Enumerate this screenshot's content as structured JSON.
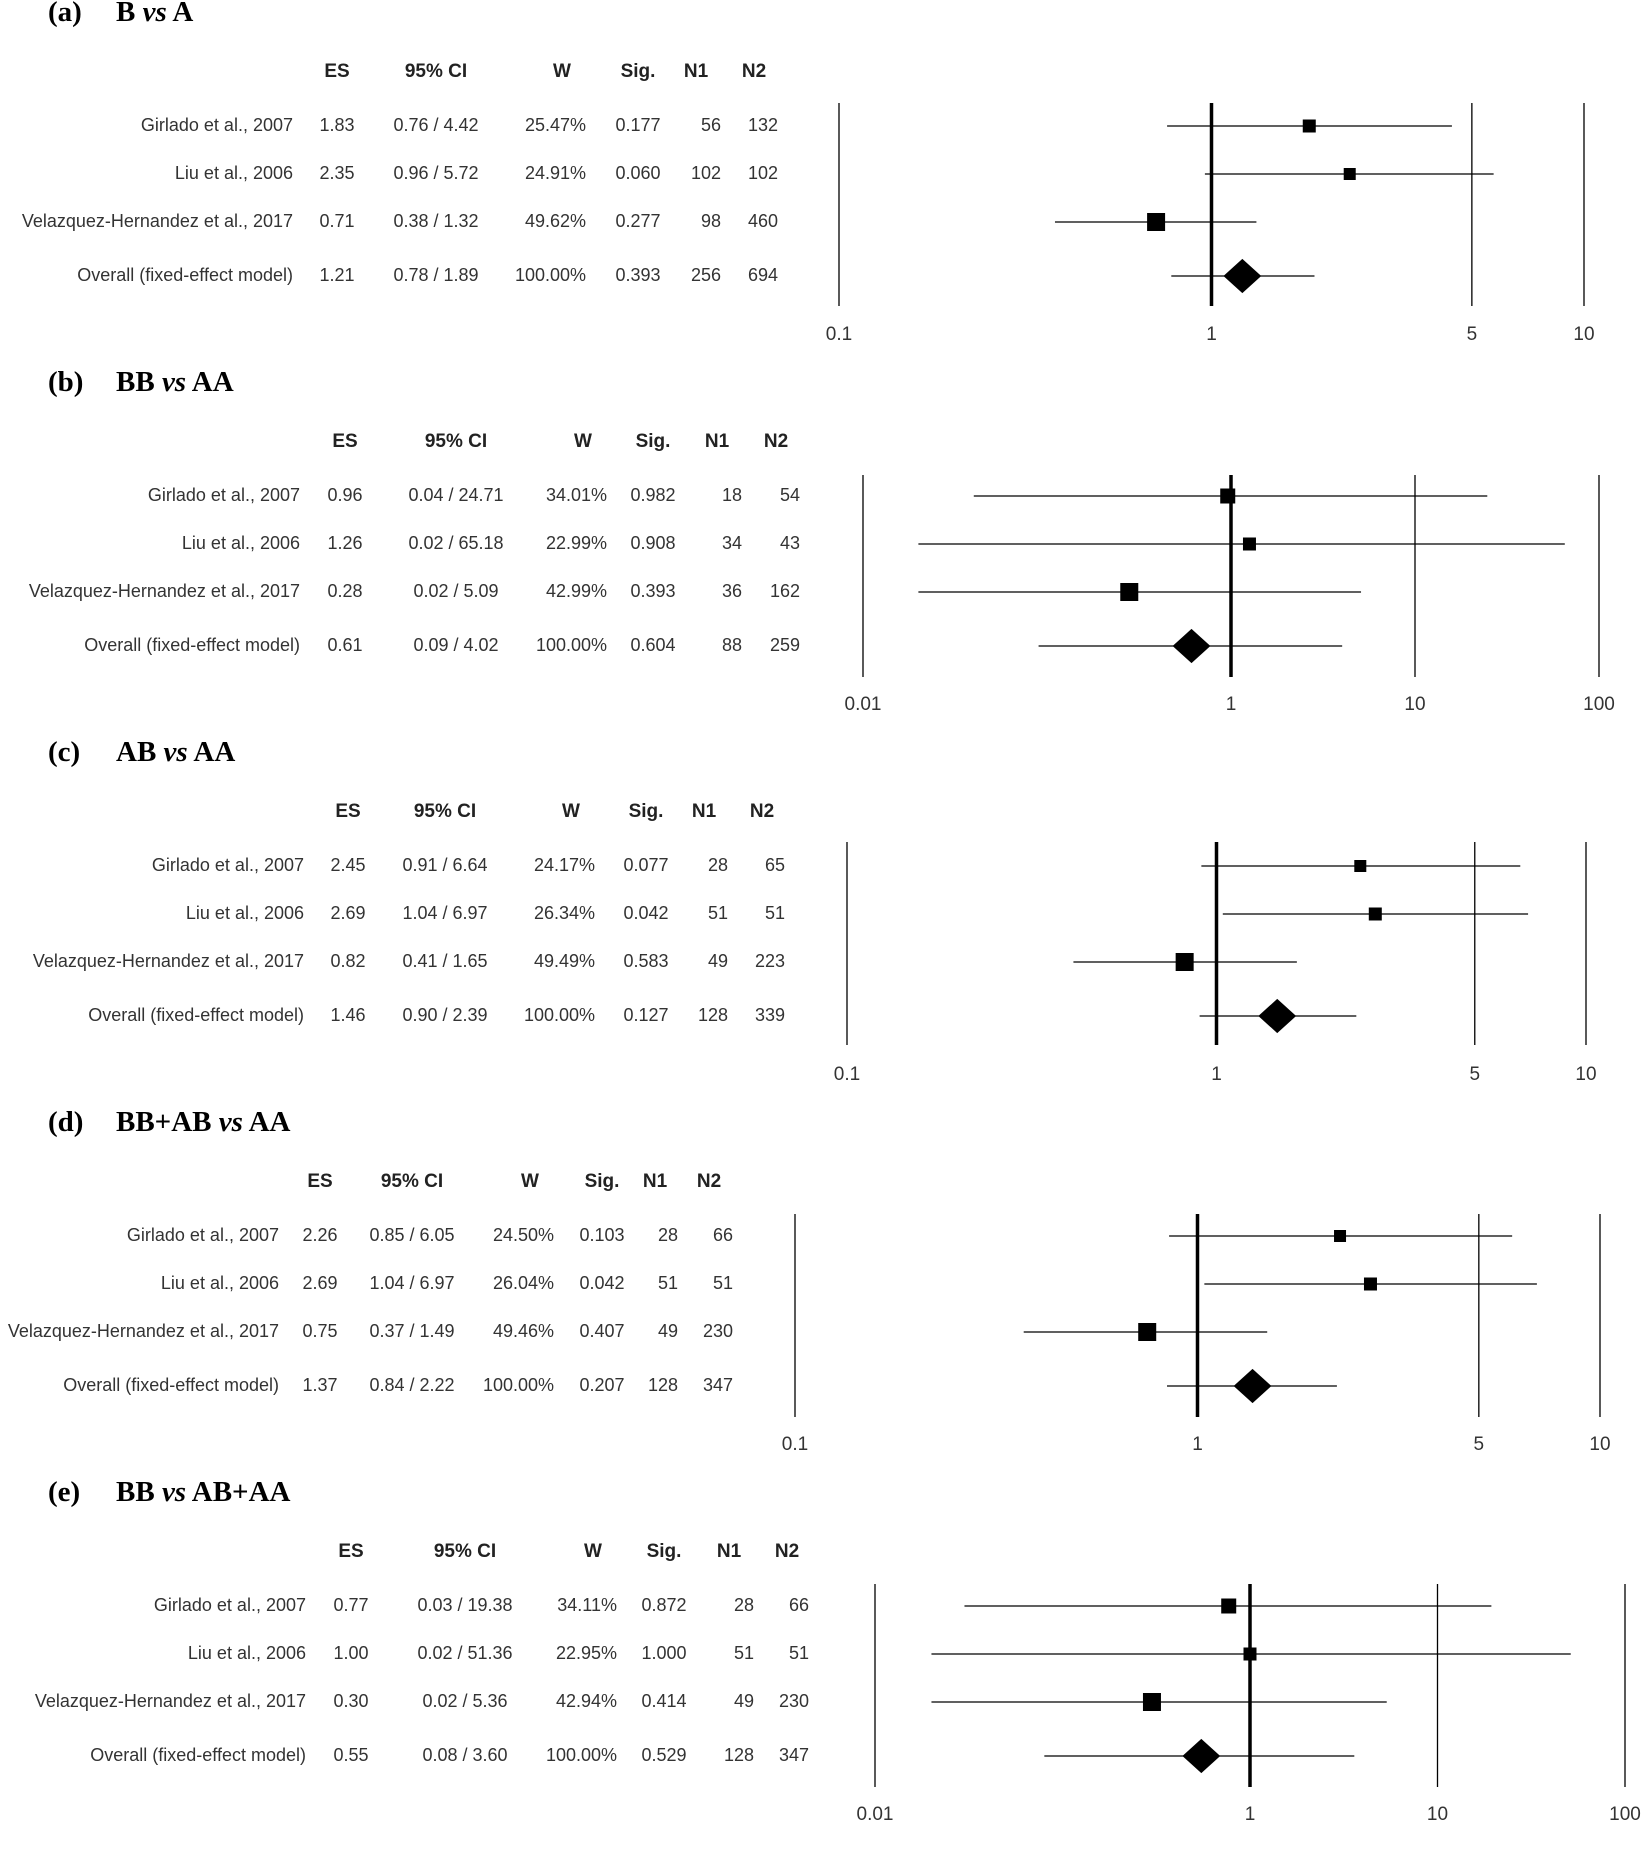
{
  "chart_data": [
    {
      "type": "forest",
      "panel_label": "(a)",
      "title_left": "B",
      "title_vs": "vs",
      "title_right": "A",
      "columns": [
        "ES",
        "95% CI",
        "W",
        "Sig.",
        "N1",
        "N2"
      ],
      "scale": "log",
      "xlim": [
        0.1,
        10
      ],
      "ticks": [
        {
          "value": 0.1,
          "label": "0.1",
          "line": "thin"
        },
        {
          "value": 1,
          "label": "1",
          "line": "thick"
        },
        {
          "value": 5,
          "label": "5",
          "line": "thin"
        },
        {
          "value": 10,
          "label": "10",
          "line": "thin"
        }
      ],
      "rows": [
        {
          "study": "Girlado et al., 2007",
          "es": "1.83",
          "ci": "0.76 / 4.42",
          "w": "25.47%",
          "sig": "0.177",
          "n1": "56",
          "n2": "132",
          "es_value": 1.83,
          "lower": 0.76,
          "upper": 4.42,
          "marker": "square",
          "marker_size": 13
        },
        {
          "study": "Liu et al., 2006",
          "es": "2.35",
          "ci": "0.96 / 5.72",
          "w": "24.91%",
          "sig": "0.060",
          "n1": "102",
          "n2": "102",
          "es_value": 2.35,
          "lower": 0.96,
          "upper": 5.72,
          "marker": "square",
          "marker_size": 12
        },
        {
          "study": "Velazquez-Hernandez et al., 2017",
          "es": "0.71",
          "ci": "0.38 / 1.32",
          "w": "49.62%",
          "sig": "0.277",
          "n1": "98",
          "n2": "460",
          "es_value": 0.71,
          "lower": 0.38,
          "upper": 1.32,
          "marker": "square",
          "marker_size": 18
        },
        {
          "study": "Overall (fixed-effect model)",
          "es": "1.21",
          "ci": "0.78 / 1.89",
          "w": "100.00%",
          "sig": "0.393",
          "n1": "256",
          "n2": "694",
          "es_value": 1.21,
          "lower": 0.78,
          "upper": 1.89,
          "marker": "diamond",
          "marker_size": 36
        }
      ]
    },
    {
      "type": "forest",
      "panel_label": "(b)",
      "title_left": "BB",
      "title_vs": "vs",
      "title_right": "AA",
      "columns": [
        "ES",
        "95% CI",
        "W",
        "Sig.",
        "N1",
        "N2"
      ],
      "scale": "log",
      "xlim": [
        0.01,
        100
      ],
      "ticks": [
        {
          "value": 0.01,
          "label": "0.01",
          "line": "thin"
        },
        {
          "value": 1,
          "label": "1",
          "line": "thick"
        },
        {
          "value": 10,
          "label": "10",
          "line": "thin"
        },
        {
          "value": 100,
          "label": "100",
          "line": "thin"
        }
      ],
      "rows": [
        {
          "study": "Girlado et al., 2007",
          "es": "0.96",
          "ci": "0.04 / 24.71",
          "w": "34.01%",
          "sig": "0.982",
          "n1": "18",
          "n2": "54",
          "es_value": 0.96,
          "lower": 0.04,
          "upper": 24.71,
          "marker": "square",
          "marker_size": 15
        },
        {
          "study": "Liu et al., 2006",
          "es": "1.26",
          "ci": "0.02 / 65.18",
          "w": "22.99%",
          "sig": "0.908",
          "n1": "34",
          "n2": "43",
          "es_value": 1.26,
          "lower": 0.02,
          "upper": 65.18,
          "marker": "square",
          "marker_size": 13
        },
        {
          "study": "Velazquez-Hernandez et al., 2017",
          "es": "0.28",
          "ci": "0.02 / 5.09",
          "w": "42.99%",
          "sig": "0.393",
          "n1": "36",
          "n2": "162",
          "es_value": 0.28,
          "lower": 0.02,
          "upper": 5.09,
          "marker": "square",
          "marker_size": 18
        },
        {
          "study": "Overall (fixed-effect model)",
          "es": "0.61",
          "ci": "0.09 / 4.02",
          "w": "100.00%",
          "sig": "0.604",
          "n1": "88",
          "n2": "259",
          "es_value": 0.61,
          "lower": 0.09,
          "upper": 4.02,
          "marker": "diamond",
          "marker_size": 36
        }
      ]
    },
    {
      "type": "forest",
      "panel_label": "(c)",
      "title_left": "AB",
      "title_vs": "vs",
      "title_right": "AA",
      "columns": [
        "ES",
        "95% CI",
        "W",
        "Sig.",
        "N1",
        "N2"
      ],
      "scale": "log",
      "xlim": [
        0.1,
        10
      ],
      "ticks": [
        {
          "value": 0.1,
          "label": "0.1",
          "line": "thin"
        },
        {
          "value": 1,
          "label": "1",
          "line": "thick"
        },
        {
          "value": 5,
          "label": "5",
          "line": "thin"
        },
        {
          "value": 10,
          "label": "10",
          "line": "thin"
        }
      ],
      "rows": [
        {
          "study": "Girlado et al., 2007",
          "es": "2.45",
          "ci": "0.91 / 6.64",
          "w": "24.17%",
          "sig": "0.077",
          "n1": "28",
          "n2": "65",
          "es_value": 2.45,
          "lower": 0.91,
          "upper": 6.64,
          "marker": "square",
          "marker_size": 12
        },
        {
          "study": "Liu et al., 2006",
          "es": "2.69",
          "ci": "1.04 / 6.97",
          "w": "26.34%",
          "sig": "0.042",
          "n1": "51",
          "n2": "51",
          "es_value": 2.69,
          "lower": 1.04,
          "upper": 6.97,
          "marker": "square",
          "marker_size": 13
        },
        {
          "study": "Velazquez-Hernandez et al., 2017",
          "es": "0.82",
          "ci": "0.41 / 1.65",
          "w": "49.49%",
          "sig": "0.583",
          "n1": "49",
          "n2": "223",
          "es_value": 0.82,
          "lower": 0.41,
          "upper": 1.65,
          "marker": "square",
          "marker_size": 18
        },
        {
          "study": "Overall (fixed-effect model)",
          "es": "1.46",
          "ci": "0.90 / 2.39",
          "w": "100.00%",
          "sig": "0.127",
          "n1": "128",
          "n2": "339",
          "es_value": 1.46,
          "lower": 0.9,
          "upper": 2.39,
          "marker": "diamond",
          "marker_size": 36
        }
      ]
    },
    {
      "type": "forest",
      "panel_label": "(d)",
      "title_left": "BB+AB",
      "title_vs": "vs",
      "title_right": "AA",
      "columns": [
        "ES",
        "95% CI",
        "W",
        "Sig.",
        "N1",
        "N2"
      ],
      "scale": "log",
      "xlim": [
        0.1,
        10
      ],
      "ticks": [
        {
          "value": 0.1,
          "label": "0.1",
          "line": "thin"
        },
        {
          "value": 1,
          "label": "1",
          "line": "thick"
        },
        {
          "value": 5,
          "label": "5",
          "line": "thin"
        },
        {
          "value": 10,
          "label": "10",
          "line": "thin"
        }
      ],
      "rows": [
        {
          "study": "Girlado et al., 2007",
          "es": "2.26",
          "ci": "0.85 / 6.05",
          "w": "24.50%",
          "sig": "0.103",
          "n1": "28",
          "n2": "66",
          "es_value": 2.26,
          "lower": 0.85,
          "upper": 6.05,
          "marker": "square",
          "marker_size": 12
        },
        {
          "study": "Liu et al., 2006",
          "es": "2.69",
          "ci": "1.04 / 6.97",
          "w": "26.04%",
          "sig": "0.042",
          "n1": "51",
          "n2": "51",
          "es_value": 2.69,
          "lower": 1.04,
          "upper": 6.97,
          "marker": "square",
          "marker_size": 13
        },
        {
          "study": "Velazquez-Hernandez et al., 2017",
          "es": "0.75",
          "ci": "0.37 / 1.49",
          "w": "49.46%",
          "sig": "0.407",
          "n1": "49",
          "n2": "230",
          "es_value": 0.75,
          "lower": 0.37,
          "upper": 1.49,
          "marker": "square",
          "marker_size": 18
        },
        {
          "study": "Overall (fixed-effect model)",
          "es": "1.37",
          "ci": "0.84 / 2.22",
          "w": "100.00%",
          "sig": "0.207",
          "n1": "128",
          "n2": "347",
          "es_value": 1.37,
          "lower": 0.84,
          "upper": 2.22,
          "marker": "diamond",
          "marker_size": 36
        }
      ]
    },
    {
      "type": "forest",
      "panel_label": "(e)",
      "title_left": "BB",
      "title_vs": "vs",
      "title_right": "AB+AA",
      "columns": [
        "ES",
        "95% CI",
        "W",
        "Sig.",
        "N1",
        "N2"
      ],
      "scale": "log",
      "xlim": [
        0.01,
        100
      ],
      "ticks": [
        {
          "value": 0.01,
          "label": "0.01",
          "line": "thin"
        },
        {
          "value": 1,
          "label": "1",
          "line": "thick"
        },
        {
          "value": 10,
          "label": "10",
          "line": "thin"
        },
        {
          "value": 100,
          "label": "100",
          "line": "thin"
        }
      ],
      "rows": [
        {
          "study": "Girlado et al., 2007",
          "es": "0.77",
          "ci": "0.03 / 19.38",
          "w": "34.11%",
          "sig": "0.872",
          "n1": "28",
          "n2": "66",
          "es_value": 0.77,
          "lower": 0.03,
          "upper": 19.38,
          "marker": "square",
          "marker_size": 15
        },
        {
          "study": "Liu et al., 2006",
          "es": "1.00",
          "ci": "0.02 / 51.36",
          "w": "22.95%",
          "sig": "1.000",
          "n1": "51",
          "n2": "51",
          "es_value": 1.0,
          "lower": 0.02,
          "upper": 51.36,
          "marker": "square",
          "marker_size": 13
        },
        {
          "study": "Velazquez-Hernandez et al., 2017",
          "es": "0.30",
          "ci": "0.02 / 5.36",
          "w": "42.94%",
          "sig": "0.414",
          "n1": "49",
          "n2": "230",
          "es_value": 0.3,
          "lower": 0.02,
          "upper": 5.36,
          "marker": "square",
          "marker_size": 18
        },
        {
          "study": "Overall (fixed-effect model)",
          "es": "0.55",
          "ci": "0.08 / 3.60",
          "w": "100.00%",
          "sig": "0.529",
          "n1": "128",
          "n2": "347",
          "es_value": 0.55,
          "lower": 0.08,
          "upper": 3.6,
          "marker": "diamond",
          "marker_size": 36
        }
      ]
    }
  ]
}
